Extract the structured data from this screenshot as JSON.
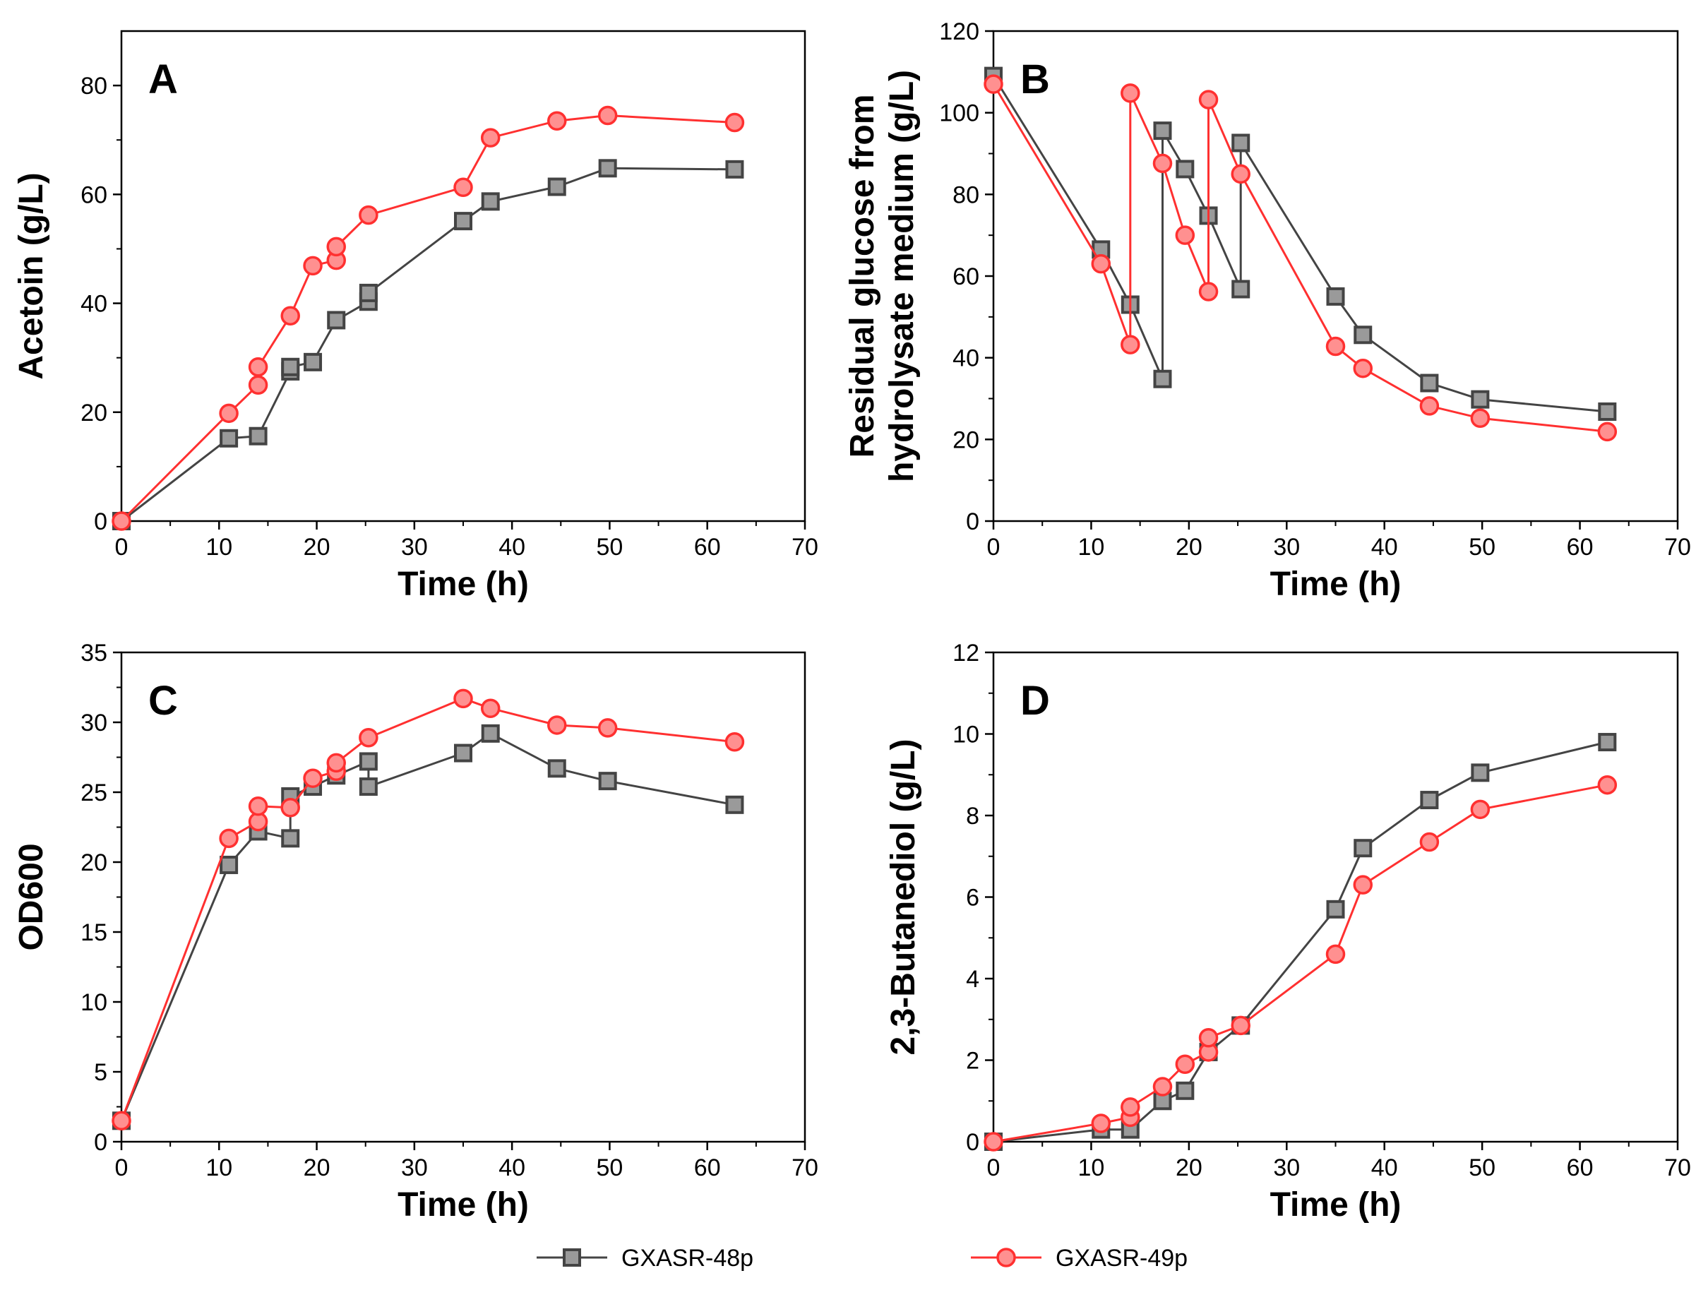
{
  "colors": {
    "series_48p_line": "#444444",
    "series_48p_marker_fill": "#9a9a9a",
    "series_49p_line": "#ff3030",
    "series_49p_marker_fill": "#ff9090",
    "axis": "#000000"
  },
  "legend": [
    {
      "name": "GXASR-48p",
      "marker": "square"
    },
    {
      "name": "GXASR-49p",
      "marker": "circle"
    }
  ],
  "chart_data": [
    {
      "panel": "A",
      "type": "line",
      "xlabel": "Time (h)",
      "ylabel": "Acetoin (g/L)",
      "xlim": [
        0,
        70
      ],
      "ylim": [
        0,
        90
      ],
      "xticks": [
        0,
        10,
        20,
        30,
        40,
        50,
        60,
        70
      ],
      "yticks": [
        0,
        20,
        40,
        60,
        80
      ],
      "series": [
        {
          "name": "GXASR-48p",
          "x": [
            0,
            11,
            14,
            17.3,
            17.3,
            19.6,
            22,
            25.3,
            25.3,
            35,
            37.8,
            44.6,
            49.8,
            62.8
          ],
          "y": [
            0,
            15.2,
            15.6,
            27.5,
            28.3,
            29.2,
            36.9,
            40.3,
            41.9,
            55.1,
            58.7,
            61.4,
            64.8,
            64.6
          ]
        },
        {
          "name": "GXASR-49p",
          "x": [
            0,
            11,
            14,
            14,
            17.3,
            19.6,
            22,
            22,
            25.3,
            35,
            37.8,
            44.6,
            49.8,
            62.8
          ],
          "y": [
            0,
            19.8,
            25.0,
            28.3,
            37.7,
            46.9,
            47.9,
            50.4,
            56.2,
            61.3,
            70.4,
            73.5,
            74.5,
            73.2
          ]
        }
      ]
    },
    {
      "panel": "B",
      "type": "line",
      "xlabel": "Time (h)",
      "ylabel_lines": [
        "Residual glucose from",
        "hydrolysate medium (g/L)"
      ],
      "xlim": [
        0,
        70
      ],
      "ylim": [
        0,
        120
      ],
      "xticks": [
        0,
        10,
        20,
        30,
        40,
        50,
        60,
        70
      ],
      "yticks": [
        0,
        20,
        40,
        60,
        80,
        100,
        120
      ],
      "series": [
        {
          "name": "GXASR-48p",
          "x": [
            0,
            11,
            14,
            17.3,
            17.3,
            19.6,
            22,
            25.3,
            25.3,
            35,
            37.8,
            44.6,
            49.8,
            62.8
          ],
          "y": [
            109,
            66.5,
            53,
            34.8,
            95.6,
            86.2,
            74.8,
            56.8,
            92.6,
            55,
            45.6,
            33.8,
            29.8,
            26.8
          ]
        },
        {
          "name": "GXASR-49p",
          "x": [
            0,
            11,
            14,
            14,
            17.3,
            19.6,
            22,
            22,
            25.3,
            35,
            37.8,
            44.6,
            49.8,
            62.8
          ],
          "y": [
            107,
            63,
            43.2,
            104.8,
            87.6,
            70,
            56.2,
            103.2,
            85,
            42.8,
            37.4,
            28.2,
            25.2,
            21.9
          ]
        }
      ]
    },
    {
      "panel": "C",
      "type": "line",
      "xlabel": "Time (h)",
      "ylabel": "OD600",
      "xlim": [
        0,
        70
      ],
      "ylim": [
        0,
        35
      ],
      "xticks": [
        0,
        10,
        20,
        30,
        40,
        50,
        60,
        70
      ],
      "yticks": [
        0,
        5,
        10,
        15,
        20,
        25,
        30,
        35
      ],
      "series": [
        {
          "name": "GXASR-48p",
          "x": [
            0,
            11,
            14,
            17.3,
            17.3,
            19.6,
            22,
            25.3,
            25.3,
            35,
            37.8,
            44.6,
            49.8,
            62.8
          ],
          "y": [
            1.5,
            19.8,
            22.2,
            21.7,
            24.7,
            25.4,
            26.2,
            27.2,
            25.4,
            27.8,
            29.2,
            26.7,
            25.8,
            24.1
          ]
        },
        {
          "name": "GXASR-49p",
          "x": [
            0,
            11,
            14,
            14,
            17.3,
            19.6,
            22,
            22,
            25.3,
            35,
            37.8,
            44.6,
            49.8,
            62.8
          ],
          "y": [
            1.5,
            21.7,
            22.9,
            24.0,
            23.9,
            26.0,
            26.5,
            27.1,
            28.9,
            31.7,
            31.0,
            29.8,
            29.6,
            28.6
          ]
        }
      ]
    },
    {
      "panel": "D",
      "type": "line",
      "xlabel": "Time (h)",
      "ylabel": "2,3-Butanediol (g/L)",
      "xlim": [
        0,
        70
      ],
      "ylim": [
        0,
        12
      ],
      "xticks": [
        0,
        10,
        20,
        30,
        40,
        50,
        60,
        70
      ],
      "yticks": [
        0,
        2,
        4,
        6,
        8,
        10,
        12
      ],
      "series": [
        {
          "name": "GXASR-48p",
          "x": [
            0,
            11,
            14,
            17.3,
            19.6,
            22,
            25.3,
            35,
            37.8,
            44.6,
            49.8,
            62.8
          ],
          "y": [
            0,
            0.3,
            0.3,
            1.0,
            1.25,
            2.2,
            2.85,
            5.7,
            7.2,
            8.38,
            9.05,
            9.8
          ]
        },
        {
          "name": "GXASR-49p",
          "x": [
            0,
            11,
            14,
            14,
            17.3,
            19.6,
            22,
            22,
            25.3,
            35,
            37.8,
            44.6,
            49.8,
            62.8
          ],
          "y": [
            0,
            0.45,
            0.6,
            0.85,
            1.35,
            1.9,
            2.2,
            2.55,
            2.85,
            4.6,
            6.3,
            7.35,
            8.15,
            8.75
          ]
        }
      ]
    }
  ]
}
